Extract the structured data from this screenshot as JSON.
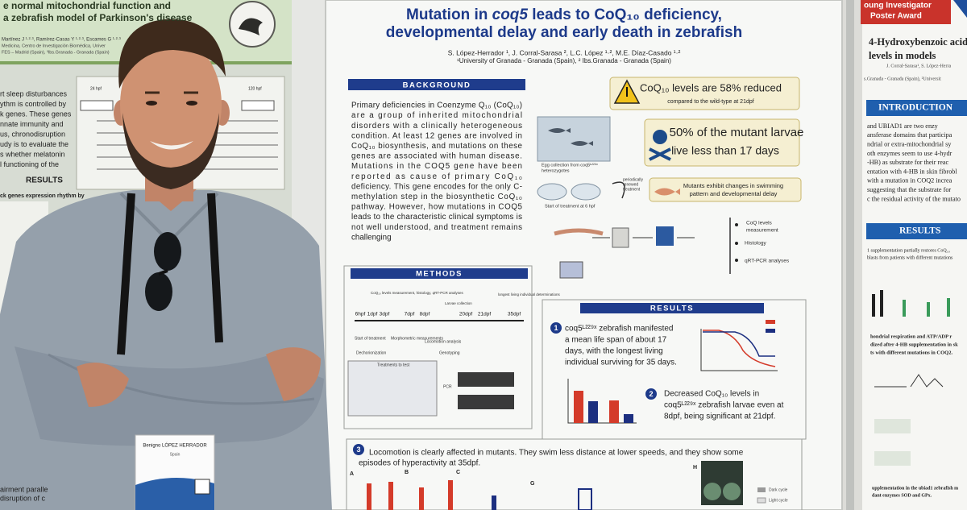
{
  "left_poster": {
    "title_lines": [
      "e normal mitochondrial function and",
      "a zebrafish model of Parkinson's disease"
    ],
    "authors": "Martínez J ¹·²·³, Ramírez-Casas Y ¹·²·³, Escames G ¹·²·³",
    "affiliation_lines": [
      "Medicina, Centro de Investigación Biomédica, Univer",
      "FES – Madrid (Spain), ³Ibs.Granada - Granada (Spain)"
    ],
    "body_lines": [
      "rt sleep disturbances",
      "ythm is controlled by",
      "k genes. These genes",
      "nnate immunity and",
      "us, chronodisruption",
      "udy is to evaluate the",
      "s whether melatonin",
      "l functioning of the"
    ],
    "timeline_labels": [
      "24 hpf",
      "120 hpf"
    ],
    "results_heading": "RESULTS",
    "results_subtitle": "ck genes expression rhythm by",
    "footer_lines": [
      "airment paralle",
      "disruption of c"
    ]
  },
  "badge": {
    "name": "Benigno LÓPEZ HERRADOR",
    "country": "Spain"
  },
  "center_poster": {
    "title_line1": [
      "Mutation in ",
      "coq5",
      " leads to CoQ₁₀ deficiency,"
    ],
    "title_line2": "developmental delay and early death in zebrafish",
    "authors": "S. López-Herrador ¹, J. Corral-Sarasa ², L.C. López ¹·², M.E. Díaz-Casado ¹·²",
    "affiliation": "¹University of Granada - Granada (Spain), ² Ibs.Granada - Granada (Spain)",
    "background": {
      "heading": "BACKGROUND",
      "lines": [
        "Primary deficiencies in Coenzyme Q₁₀ (CoQ₁₀)",
        "are a group of inherited mitochondrial",
        "disorders with a clinically heterogeneous",
        "condition. At least 12 genes are involved in",
        "CoQ₁₀ biosynthesis, and mutations on these",
        "genes are associated with human disease.",
        "Mutations in the COQ5 gene have been",
        "reported as cause of primary CoQ₁₀",
        "deficiency. This gene encodes for the only C-",
        "methylation step in the biosynthetic CoQ₁₀",
        "pathway. However, how mutations in COQ5",
        "leads to the characteristic clinical symptoms is",
        "not well understood, and treatment remains",
        "challenging"
      ]
    },
    "highlights": [
      {
        "lines": [
          "CoQ₁₀ levels are 58% reduced",
          "compared to the wild-type at 21dpf"
        ]
      },
      {
        "lines": [
          "50% of the mutant larvae",
          "live less than 17 days"
        ]
      },
      {
        "lines": [
          "Mutants exhibit changes in swimming",
          "pattern and developmental delay"
        ]
      }
    ],
    "workflow": {
      "egg_collection": [
        "Egg collection from coq5ᴸ²²⁹ˣ",
        "heterozygotes"
      ],
      "start_treatment": "Start of treatment at 6 hpf",
      "renewed": [
        "periodically",
        "renewed",
        "treatment"
      ],
      "analyses": [
        "CoQ levels",
        "measurement",
        "Histology",
        "qRT-PCR analyses"
      ]
    },
    "methods": {
      "heading": "METHODS",
      "top_labels": [
        "CoQ₁₀ levels measurement, histology, qRT-PCR analyses",
        "Larvae collection",
        "longest living individual determinations"
      ],
      "timeline": [
        "6hpf",
        "1dpf",
        "3dpf",
        "7dpf",
        "8dpf",
        "20dpf",
        "21dpf",
        "35dpf"
      ],
      "step_labels": [
        "Start of treatment",
        "Dechorionization",
        "Morphometric measurements",
        "Locomotion analysis",
        "Genotyping",
        "Treatments to test",
        "PCR"
      ]
    },
    "results": {
      "heading": "RESULTS",
      "items": [
        {
          "number": "1",
          "lines": [
            "coq5ᴸ²²⁹ˣ zebrafish manifested",
            "a mean life span of about 17",
            "days, with the longest living",
            "individual surviving for 35 days."
          ]
        },
        {
          "number": "2",
          "lines": [
            "Decreased CoQ₁₀ levels in",
            "coq5ᴸ²²⁹ˣ zebrafish larvae even at",
            "8dpf, being significant at 21dpf."
          ]
        },
        {
          "number": "3",
          "lines": [
            "Locomotion is clearly affected in mutants. They swim less distance at lower speeds, and they show some",
            "episodes of hyperactivity at 35dpf."
          ]
        }
      ],
      "panel_letters": [
        "A",
        "B",
        "C",
        "G",
        "H"
      ],
      "legend": [
        "Dark cycle",
        "Light cycle"
      ]
    }
  },
  "right_poster": {
    "award_lines": [
      "oung Investigator",
      "Poster Award"
    ],
    "title_lines": [
      "4-Hydroxybenzoic acid",
      "levels in models"
    ],
    "authors": "J. Corral-Sarasa¹, S. López-Herra",
    "affiliation": "s.Granada - Granada (Spain), ²Universit",
    "intro_heading": "INTRODUCTION",
    "intro_lines": [
      "and UBIAD1 are two enzy",
      "ansferase domains that participa",
      "ndrial or extra-mitochondrial sy",
      "oth enzymes seem to use 4-hydr",
      "-HB) as substrate for their reac",
      "entation with 4-HB in skin fibrobl",
      "with a mutation in COQ2 increa",
      "suggesting that the substrate for",
      "c the residual activity of the mutato"
    ],
    "results_heading": "RESULTS",
    "results_lines": [
      "1 supplementation partially restores CoQ₁₀",
      "blasts from patients with different mutations"
    ],
    "caption_lines": [
      "hondrial respiration and ATP/ADP r",
      "dized after 4-HB supplementation in sk",
      "ts with different mutations in COQ2."
    ],
    "footer_lines": [
      "upplementation in the ubiad1 zebrafish m",
      "dant enzymes SOD and GPx."
    ]
  }
}
